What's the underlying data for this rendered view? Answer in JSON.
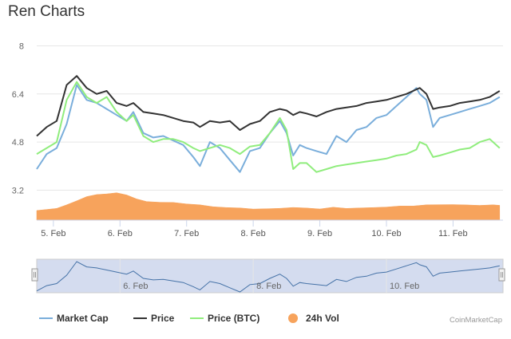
{
  "chart_data": {
    "type": "line",
    "title": "Ren Charts",
    "credit": "CoinMarketCap",
    "yticks": [
      3.2,
      4.8,
      6.4,
      8
    ],
    "ylim": [
      2.2,
      8.2
    ],
    "x_range": [
      4.75,
      11.75
    ],
    "x_ticks": [
      {
        "x": 5,
        "label": "5. Feb"
      },
      {
        "x": 6,
        "label": "6. Feb"
      },
      {
        "x": 7,
        "label": "7. Feb"
      },
      {
        "x": 8,
        "label": "8. Feb"
      },
      {
        "x": 9,
        "label": "9. Feb"
      },
      {
        "x": 10,
        "label": "10. Feb"
      },
      {
        "x": 11,
        "label": "11. Feb"
      }
    ],
    "navigator_ticks": [
      {
        "x": 6,
        "label": "6. Feb"
      },
      {
        "x": 8,
        "label": "8. Feb"
      },
      {
        "x": 10,
        "label": "10. Feb"
      }
    ],
    "legend_position": "bottom",
    "grid": true,
    "series": [
      {
        "name": "Market Cap",
        "color": "#7aaedb",
        "x": [
          4.75,
          4.9,
          5.05,
          5.2,
          5.35,
          5.5,
          5.65,
          5.8,
          5.95,
          6.1,
          6.2,
          6.35,
          6.5,
          6.65,
          6.8,
          6.95,
          7.1,
          7.2,
          7.35,
          7.5,
          7.65,
          7.8,
          7.95,
          8.1,
          8.25,
          8.4,
          8.5,
          8.6,
          8.7,
          8.8,
          8.95,
          9.1,
          9.25,
          9.4,
          9.55,
          9.7,
          9.85,
          10.0,
          10.15,
          10.3,
          10.45,
          10.5,
          10.6,
          10.7,
          10.8,
          10.95,
          11.1,
          11.25,
          11.4,
          11.55,
          11.7
        ],
        "values": [
          3.9,
          4.4,
          4.6,
          5.4,
          6.7,
          6.2,
          6.1,
          5.9,
          5.7,
          5.5,
          5.8,
          5.1,
          4.95,
          5.0,
          4.85,
          4.7,
          4.3,
          4.0,
          4.8,
          4.6,
          4.2,
          3.8,
          4.5,
          4.6,
          5.1,
          5.5,
          5.1,
          4.35,
          4.7,
          4.6,
          4.5,
          4.4,
          5.0,
          4.8,
          5.2,
          5.3,
          5.6,
          5.7,
          6.0,
          6.3,
          6.6,
          6.4,
          6.2,
          5.3,
          5.6,
          5.7,
          5.8,
          5.9,
          6.0,
          6.1,
          6.3
        ]
      },
      {
        "name": "Price",
        "color": "#333333",
        "x": [
          4.75,
          4.9,
          5.05,
          5.2,
          5.35,
          5.5,
          5.65,
          5.8,
          5.95,
          6.1,
          6.2,
          6.35,
          6.5,
          6.65,
          6.8,
          6.95,
          7.1,
          7.2,
          7.35,
          7.5,
          7.65,
          7.8,
          7.95,
          8.1,
          8.25,
          8.4,
          8.5,
          8.6,
          8.7,
          8.8,
          8.95,
          9.1,
          9.25,
          9.4,
          9.55,
          9.7,
          9.85,
          10.0,
          10.15,
          10.3,
          10.45,
          10.5,
          10.6,
          10.7,
          10.8,
          10.95,
          11.1,
          11.25,
          11.4,
          11.55,
          11.7
        ],
        "values": [
          5.0,
          5.3,
          5.5,
          6.7,
          7.0,
          6.6,
          6.4,
          6.5,
          6.1,
          6.0,
          6.1,
          5.8,
          5.75,
          5.7,
          5.6,
          5.5,
          5.45,
          5.3,
          5.5,
          5.45,
          5.5,
          5.2,
          5.4,
          5.5,
          5.8,
          5.9,
          5.85,
          5.7,
          5.8,
          5.75,
          5.65,
          5.8,
          5.9,
          5.95,
          6.0,
          6.1,
          6.15,
          6.2,
          6.3,
          6.4,
          6.55,
          6.6,
          6.4,
          5.9,
          5.95,
          6.0,
          6.1,
          6.15,
          6.2,
          6.3,
          6.5
        ]
      },
      {
        "name": "Price (BTC)",
        "color": "#90ed7d",
        "x": [
          4.75,
          4.9,
          5.05,
          5.2,
          5.35,
          5.5,
          5.65,
          5.8,
          5.95,
          6.1,
          6.2,
          6.35,
          6.5,
          6.65,
          6.8,
          6.95,
          7.1,
          7.2,
          7.35,
          7.5,
          7.65,
          7.8,
          7.95,
          8.1,
          8.25,
          8.4,
          8.5,
          8.6,
          8.7,
          8.8,
          8.95,
          9.1,
          9.25,
          9.4,
          9.55,
          9.7,
          9.85,
          10.0,
          10.15,
          10.3,
          10.45,
          10.5,
          10.6,
          10.7,
          10.8,
          10.95,
          11.1,
          11.25,
          11.4,
          11.55,
          11.7
        ],
        "values": [
          4.4,
          4.6,
          4.8,
          6.2,
          6.8,
          6.3,
          6.1,
          6.3,
          5.8,
          5.5,
          5.7,
          5.0,
          4.8,
          4.9,
          4.9,
          4.8,
          4.6,
          4.5,
          4.6,
          4.7,
          4.6,
          4.4,
          4.65,
          4.7,
          5.1,
          5.6,
          5.2,
          3.9,
          4.1,
          4.1,
          3.8,
          3.9,
          4.0,
          4.05,
          4.1,
          4.15,
          4.2,
          4.25,
          4.35,
          4.4,
          4.55,
          4.8,
          4.7,
          4.3,
          4.35,
          4.45,
          4.55,
          4.6,
          4.8,
          4.9,
          4.6
        ]
      },
      {
        "name": "24h Vol",
        "color": "#f7a35c",
        "type": "area",
        "x": [
          4.75,
          4.9,
          5.05,
          5.2,
          5.35,
          5.5,
          5.65,
          5.8,
          5.95,
          6.1,
          6.25,
          6.4,
          6.6,
          6.8,
          7.0,
          7.2,
          7.4,
          7.6,
          7.8,
          8.0,
          8.2,
          8.4,
          8.6,
          8.8,
          9.0,
          9.2,
          9.4,
          9.6,
          9.8,
          10.0,
          10.2,
          10.4,
          10.6,
          10.8,
          11.0,
          11.2,
          11.4,
          11.6,
          11.7
        ],
        "values": [
          2.52,
          2.55,
          2.6,
          2.7,
          2.85,
          2.98,
          3.05,
          3.08,
          3.1,
          3.05,
          2.9,
          2.82,
          2.8,
          2.78,
          2.75,
          2.7,
          2.65,
          2.62,
          2.6,
          2.58,
          2.57,
          2.6,
          2.62,
          2.6,
          2.58,
          2.62,
          2.6,
          2.6,
          2.62,
          2.64,
          2.66,
          2.68,
          2.7,
          2.72,
          2.72,
          2.7,
          2.7,
          2.7,
          2.7
        ]
      }
    ]
  }
}
